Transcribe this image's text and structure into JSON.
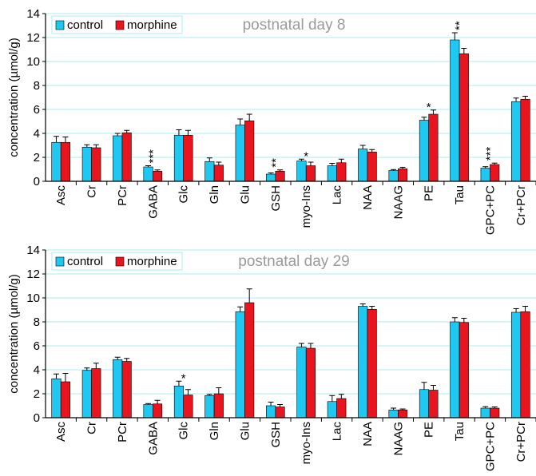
{
  "colors": {
    "control": "#1ec8f0",
    "morphine": "#e8141e",
    "grid": "#a8eef0",
    "axis": "#000000",
    "title": "#9a9a9a"
  },
  "chart_data": [
    {
      "type": "bar",
      "title": "postnatal day 8",
      "ylabel": "concentration (µmol/g)",
      "ylim": [
        0,
        14
      ],
      "yticks": [
        0,
        2,
        4,
        6,
        8,
        10,
        12,
        14
      ],
      "grid": true,
      "legend_position": "top-left",
      "categories": [
        "Asc",
        "Cr",
        "PCr",
        "GABA",
        "Glc",
        "Gln",
        "Glu",
        "GSH",
        "myo-Ins",
        "Lac",
        "NAA",
        "NAAG",
        "PE",
        "Tau",
        "GPC+PC",
        "Cr+PCr"
      ],
      "series": [
        {
          "name": "control",
          "values": [
            3.25,
            2.85,
            3.8,
            1.2,
            3.85,
            1.65,
            4.7,
            0.6,
            1.7,
            1.3,
            2.7,
            0.9,
            5.1,
            11.8,
            1.1,
            6.65
          ],
          "errors": [
            0.5,
            0.2,
            0.2,
            0.1,
            0.45,
            0.3,
            0.5,
            0.1,
            0.15,
            0.2,
            0.3,
            0.08,
            0.25,
            0.6,
            0.12,
            0.3
          ]
        },
        {
          "name": "morphine",
          "values": [
            3.25,
            2.8,
            4.05,
            0.85,
            3.85,
            1.35,
            5.05,
            0.85,
            1.3,
            1.55,
            2.45,
            1.05,
            5.6,
            10.65,
            1.4,
            6.85
          ],
          "errors": [
            0.45,
            0.25,
            0.2,
            0.1,
            0.4,
            0.25,
            0.55,
            0.1,
            0.3,
            0.3,
            0.2,
            0.12,
            0.35,
            0.45,
            0.12,
            0.25
          ]
        }
      ],
      "annotations": [
        {
          "category": "GABA",
          "text": "***"
        },
        {
          "category": "GSH",
          "text": "**"
        },
        {
          "category": "myo-Ins",
          "text": "*"
        },
        {
          "category": "PE",
          "text": "*"
        },
        {
          "category": "Tau",
          "text": "**"
        },
        {
          "category": "GPC+PC",
          "text": "***"
        }
      ]
    },
    {
      "type": "bar",
      "title": "postnatal day 29",
      "ylabel": "concentration (µmol/g)",
      "ylim": [
        0,
        14
      ],
      "yticks": [
        0,
        2,
        4,
        6,
        8,
        10,
        12,
        14
      ],
      "grid": true,
      "legend_position": "top-left",
      "categories": [
        "Asc",
        "Cr",
        "PCr",
        "GABA",
        "Glc",
        "Gln",
        "Glu",
        "GSH",
        "myo-Ins",
        "Lac",
        "NAA",
        "NAAG",
        "PE",
        "Tau",
        "GPC+PC",
        "Cr+PCr"
      ],
      "series": [
        {
          "name": "control",
          "values": [
            3.25,
            3.95,
            4.85,
            1.1,
            2.65,
            1.85,
            8.85,
            1.0,
            5.9,
            1.35,
            9.3,
            0.65,
            2.35,
            8.0,
            0.8,
            8.8
          ],
          "errors": [
            0.4,
            0.2,
            0.2,
            0.08,
            0.4,
            0.1,
            0.4,
            0.3,
            0.3,
            0.5,
            0.2,
            0.15,
            0.6,
            0.35,
            0.12,
            0.3
          ]
        },
        {
          "name": "morphine",
          "values": [
            3.0,
            4.1,
            4.7,
            1.15,
            1.9,
            2.0,
            9.6,
            0.9,
            5.8,
            1.6,
            9.05,
            0.65,
            2.3,
            7.95,
            0.8,
            8.85
          ],
          "errors": [
            0.7,
            0.45,
            0.25,
            0.3,
            0.45,
            0.5,
            1.15,
            0.2,
            0.4,
            0.35,
            0.25,
            0.08,
            0.4,
            0.35,
            0.1,
            0.45
          ]
        }
      ],
      "annotations": [
        {
          "category": "Glc",
          "text": "*"
        }
      ]
    }
  ]
}
